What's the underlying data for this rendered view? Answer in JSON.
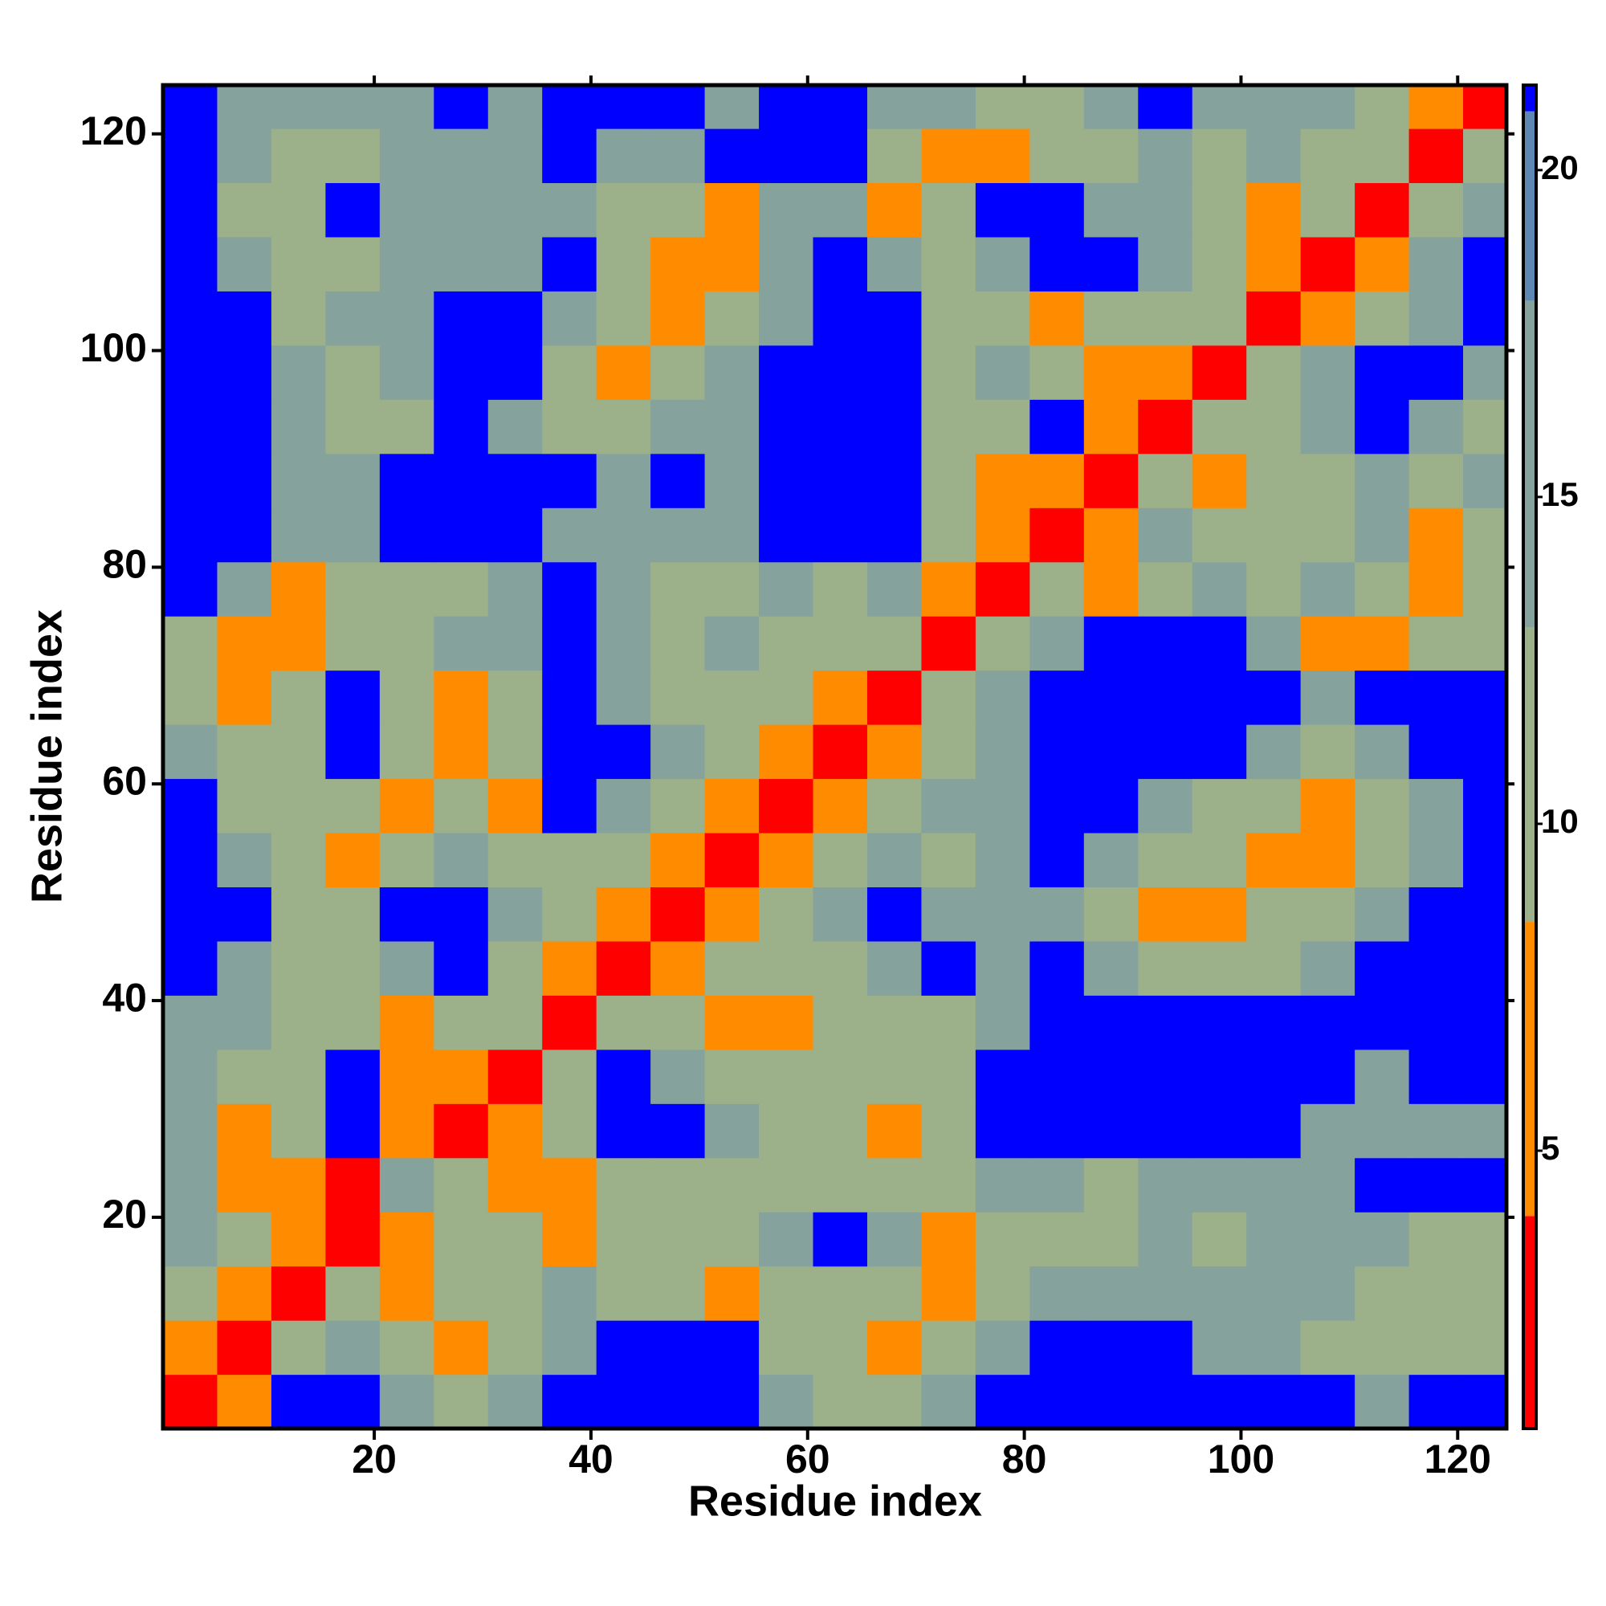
{
  "chart_data": {
    "type": "heatmap",
    "xlabel": "Residue index",
    "ylabel": "Residue index",
    "x": [
      3,
      8,
      13,
      18,
      23,
      28,
      33,
      38,
      43,
      48,
      53,
      58,
      63,
      68,
      73,
      78,
      83,
      88,
      93,
      98,
      103,
      108,
      113,
      118,
      123
    ],
    "y": [
      3,
      8,
      13,
      18,
      23,
      28,
      33,
      38,
      43,
      48,
      53,
      58,
      63,
      68,
      73,
      78,
      83,
      88,
      93,
      98,
      103,
      108,
      113,
      118,
      123
    ],
    "cell_size": 5,
    "xlim": [
      0.5,
      124.5
    ],
    "ylim": [
      0.5,
      124.5
    ],
    "xticks": [
      20,
      40,
      60,
      80,
      100,
      120
    ],
    "yticks": [
      20,
      40,
      60,
      80,
      100,
      120
    ],
    "clim": [
      0.75,
      21.3
    ],
    "cticks": [
      5,
      10,
      15,
      20
    ],
    "colorscale": [
      {
        "max": 4,
        "color": "#ff0000"
      },
      {
        "max": 8.5,
        "color": "#ff8c00"
      },
      {
        "max": 13,
        "color": "#9cb08a"
      },
      {
        "max": 18,
        "color": "#86a29c"
      },
      {
        "max": 20.9,
        "color": "#5d88b4"
      },
      {
        "max": 21.3,
        "color": "#0000ff"
      }
    ],
    "z": [
      [
        2,
        6,
        21,
        21,
        17,
        11,
        17,
        21,
        21,
        21,
        21,
        17,
        11,
        11,
        17,
        21,
        21,
        21,
        21,
        21,
        21,
        21,
        17,
        21,
        21
      ],
      [
        6,
        2,
        11,
        17,
        11,
        6,
        11,
        17,
        21,
        21,
        21,
        11,
        11,
        6,
        11,
        17,
        21,
        21,
        21,
        17,
        17,
        11,
        11,
        11,
        11
      ],
      [
        11,
        6,
        2,
        11,
        6,
        11,
        11,
        17,
        11,
        11,
        6,
        11,
        11,
        11,
        6,
        11,
        17,
        17,
        17,
        17,
        17,
        17,
        11,
        11,
        11
      ],
      [
        17,
        11,
        6,
        2,
        6,
        11,
        11,
        6,
        11,
        11,
        11,
        17,
        21,
        17,
        6,
        11,
        11,
        11,
        17,
        11,
        17,
        17,
        17,
        11,
        11
      ],
      [
        17,
        6,
        6,
        2,
        17,
        11,
        6,
        6,
        11,
        11,
        11,
        11,
        11,
        11,
        11,
        17,
        17,
        11,
        17,
        17,
        17,
        17,
        21,
        21,
        21
      ],
      [
        17,
        6,
        11,
        21,
        6,
        2,
        6,
        11,
        21,
        21,
        17,
        11,
        11,
        6,
        11,
        21,
        21,
        21,
        21,
        21,
        21,
        17,
        17,
        17,
        17
      ],
      [
        17,
        11,
        11,
        21,
        6,
        6,
        2,
        11,
        21,
        17,
        11,
        11,
        11,
        11,
        11,
        21,
        21,
        21,
        21,
        21,
        21,
        21,
        17,
        21,
        21
      ],
      [
        17,
        17,
        11,
        11,
        6,
        11,
        11,
        2,
        11,
        11,
        6,
        6,
        11,
        11,
        11,
        17,
        21,
        21,
        21,
        21,
        21,
        21,
        21,
        21,
        21
      ],
      [
        21,
        17,
        11,
        11,
        17,
        21,
        11,
        6,
        2,
        6,
        11,
        11,
        11,
        17,
        21,
        17,
        21,
        17,
        11,
        11,
        11,
        17,
        21,
        21,
        21
      ],
      [
        21,
        21,
        11,
        11,
        21,
        21,
        17,
        11,
        6,
        2,
        6,
        11,
        17,
        21,
        17,
        17,
        17,
        11,
        6,
        6,
        11,
        11,
        17,
        21,
        21
      ],
      [
        21,
        17,
        11,
        6,
        11,
        17,
        11,
        11,
        11,
        6,
        2,
        6,
        11,
        17,
        11,
        17,
        21,
        17,
        11,
        11,
        6,
        6,
        11,
        17,
        21
      ],
      [
        21,
        11,
        11,
        11,
        6,
        11,
        6,
        21,
        17,
        11,
        6,
        2,
        6,
        11,
        17,
        17,
        21,
        21,
        17,
        11,
        11,
        6,
        11,
        17,
        21
      ],
      [
        17,
        11,
        11,
        21,
        11,
        6,
        11,
        21,
        21,
        17,
        11,
        6,
        2,
        6,
        11,
        17,
        21,
        21,
        21,
        21,
        17,
        11,
        17,
        21,
        21
      ],
      [
        11,
        6,
        11,
        21,
        11,
        6,
        11,
        21,
        17,
        11,
        11,
        11,
        6,
        2,
        11,
        17,
        21,
        21,
        21,
        21,
        21,
        17,
        21,
        21,
        21
      ],
      [
        11,
        6,
        6,
        11,
        11,
        17,
        17,
        21,
        17,
        11,
        17,
        11,
        11,
        11,
        2,
        11,
        17,
        21,
        21,
        21,
        17,
        6,
        6,
        11,
        11
      ],
      [
        21,
        17,
        6,
        11,
        11,
        11,
        17,
        21,
        17,
        11,
        11,
        17,
        11,
        17,
        6,
        2,
        11,
        6,
        11,
        17,
        11,
        17,
        11,
        6,
        11
      ],
      [
        21,
        21,
        17,
        17,
        21,
        21,
        21,
        17,
        17,
        17,
        17,
        21,
        21,
        21,
        11,
        6,
        2,
        6,
        17,
        11,
        11,
        11,
        17,
        6,
        11
      ],
      [
        21,
        21,
        17,
        17,
        21,
        21,
        21,
        21,
        17,
        21,
        17,
        21,
        21,
        21,
        11,
        6,
        6,
        2,
        11,
        6,
        11,
        11,
        17,
        11,
        17
      ],
      [
        21,
        21,
        17,
        11,
        11,
        21,
        17,
        11,
        11,
        17,
        17,
        21,
        21,
        21,
        11,
        11,
        21,
        6,
        2,
        11,
        11,
        17,
        21,
        17,
        11
      ],
      [
        21,
        21,
        17,
        11,
        17,
        21,
        21,
        11,
        6,
        11,
        17,
        21,
        21,
        21,
        11,
        17,
        11,
        6,
        6,
        2,
        11,
        17,
        21,
        21,
        17
      ],
      [
        21,
        21,
        11,
        17,
        17,
        21,
        21,
        17,
        11,
        6,
        11,
        17,
        21,
        21,
        11,
        11,
        6,
        11,
        11,
        11,
        2,
        6,
        11,
        17,
        21
      ],
      [
        21,
        17,
        11,
        11,
        17,
        17,
        17,
        21,
        11,
        6,
        6,
        17,
        21,
        17,
        11,
        17,
        21,
        21,
        17,
        11,
        6,
        2,
        6,
        17,
        21
      ],
      [
        21,
        11,
        11,
        21,
        17,
        17,
        17,
        17,
        11,
        11,
        6,
        17,
        17,
        6,
        11,
        21,
        21,
        17,
        17,
        11,
        6,
        11,
        2,
        11,
        17
      ],
      [
        21,
        17,
        11,
        11,
        17,
        17,
        17,
        21,
        17,
        17,
        21,
        21,
        21,
        11,
        6,
        6,
        11,
        11,
        17,
        11,
        17,
        11,
        11,
        2,
        11
      ],
      [
        21,
        17,
        17,
        17,
        17,
        21,
        17,
        21,
        21,
        21,
        17,
        21,
        21,
        17,
        17,
        11,
        11,
        17,
        21,
        17,
        17,
        17,
        11,
        6,
        2
      ]
    ]
  }
}
